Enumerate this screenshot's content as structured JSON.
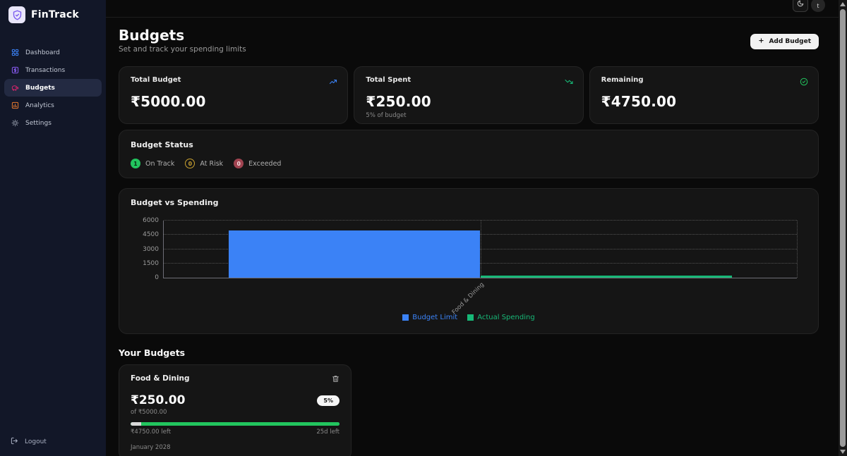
{
  "app": {
    "name": "FinTrack"
  },
  "topbar": {
    "avatar_text": "t"
  },
  "sidebar": {
    "items": [
      {
        "label": "Dashboard"
      },
      {
        "label": "Transactions"
      },
      {
        "label": "Budgets"
      },
      {
        "label": "Analytics"
      },
      {
        "label": "Settings"
      }
    ],
    "logout_label": "Logout"
  },
  "page": {
    "title": "Budgets",
    "subtitle": "Set and track your spending limits",
    "add_button_label": "Add Budget"
  },
  "stats": [
    {
      "label": "Total Budget",
      "value": "₹5000.00"
    },
    {
      "label": "Total Spent",
      "value": "₹250.00",
      "sub": "5% of budget"
    },
    {
      "label": "Remaining",
      "value": "₹4750.00"
    }
  ],
  "budget_status": {
    "title": "Budget Status",
    "items": [
      {
        "count": "1",
        "label": "On Track"
      },
      {
        "count": "0",
        "label": "At Risk"
      },
      {
        "count": "0",
        "label": "Exceeded"
      }
    ]
  },
  "chart_data": {
    "type": "bar",
    "title": "Budget vs Spending",
    "categories": [
      "Food & Dining"
    ],
    "series": [
      {
        "name": "Budget Limit",
        "values": [
          5000
        ],
        "color": "#3b82f6"
      },
      {
        "name": "Actual Spending",
        "values": [
          250
        ],
        "color": "#17b877"
      }
    ],
    "ylim": [
      0,
      6000
    ],
    "yticks": [
      0,
      1500,
      3000,
      4500,
      6000
    ],
    "grid": true,
    "legend_position": "bottom"
  },
  "your_budgets": {
    "title": "Your Budgets",
    "cards": [
      {
        "name": "Food & Dining",
        "spent": "₹250.00",
        "percent_badge": "5%",
        "of_text": "of ₹5000.00",
        "remaining_text": "₹4750.00 left",
        "days_left_text": "25d left",
        "period": "January 2028",
        "progress_percent": 5
      }
    ]
  },
  "colors": {
    "accent_blue": "#3b82f6",
    "accent_green": "#22c55e",
    "chart_green": "#17b877",
    "sidebar_bg": "#121728",
    "card_bg": "#151515",
    "status_amber": "#caa231",
    "status_red": "#a04350"
  }
}
